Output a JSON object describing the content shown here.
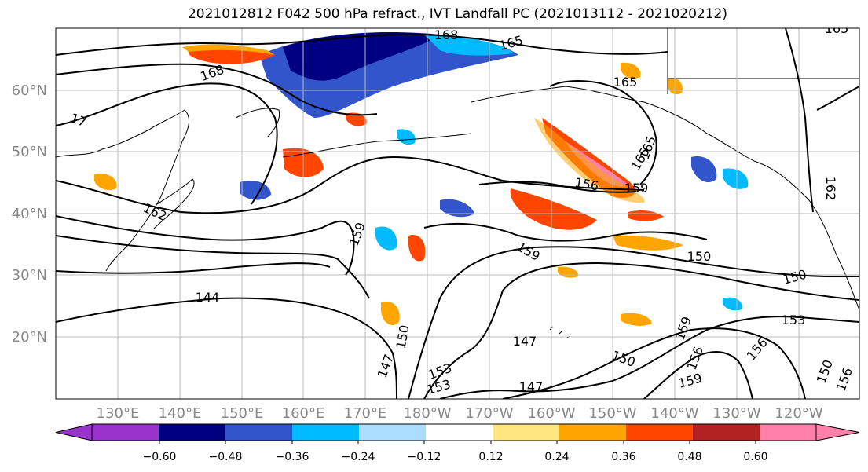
{
  "title": "2021012812 F042 500 hPa refract., IVT Landfall PC (2021013112 - 2021020212)",
  "lon_labels": [
    "130°E",
    "140°E",
    "150°E",
    "160°E",
    "170°E",
    "180°W",
    "170°W",
    "160°W",
    "150°W",
    "140°W",
    "130°W",
    "120°W"
  ],
  "lat_labels": [
    "60°N",
    "50°N",
    "40°N",
    "30°N",
    "20°N"
  ],
  "colorbar": {
    "colors": [
      "#9933cc",
      "#000080",
      "#3355cc",
      "#00bbff",
      "#aaddff",
      "#ffffff",
      "#ffe680",
      "#ffa500",
      "#ff4500",
      "#b22222",
      "#ff80aa"
    ],
    "tick_labels": [
      "−0.60",
      "−0.48",
      "−0.36",
      "−0.24",
      "−0.12",
      "0.12",
      "0.24",
      "0.36",
      "0.48",
      "0.60"
    ]
  },
  "contour_labels": [
    "168",
    "168",
    "165",
    "17",
    "165",
    "162",
    "159",
    "159",
    "156",
    "159",
    "165",
    "153",
    "150",
    "144",
    "153",
    "150",
    "147",
    "147",
    "150",
    "153",
    "156",
    "147",
    "150",
    "156",
    "159",
    "162",
    "156",
    "150",
    "159",
    "165",
    "165"
  ]
}
